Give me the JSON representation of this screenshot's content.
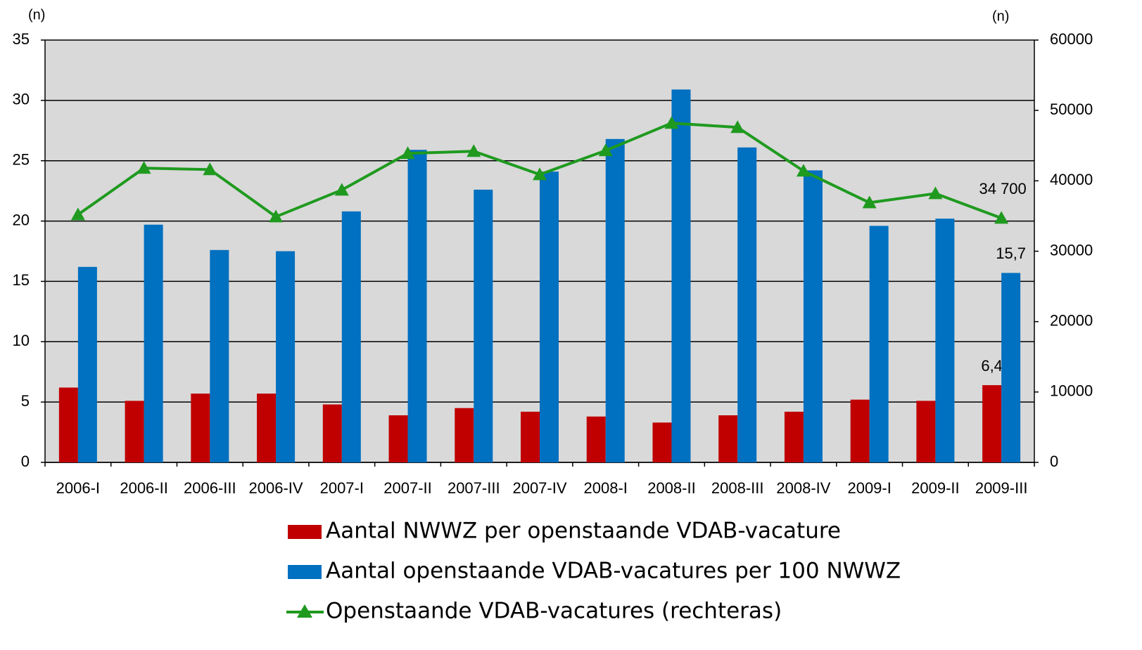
{
  "chart_data": {
    "type": "bar",
    "ylabel": "(n)",
    "y2label": "(n)",
    "categories": [
      "2006-I",
      "2006-II",
      "2006-III",
      "2006-IV",
      "2007-I",
      "2007-II",
      "2007-III",
      "2007-IV",
      "2008-I",
      "2008-II",
      "2008-III",
      "2008-IV",
      "2009-I",
      "2009-II",
      "2009-III"
    ],
    "series": [
      {
        "name": "Aantal NWWZ per openstaande VDAB-vacature",
        "type": "bar",
        "color": "#c00000",
        "values": [
          6.2,
          5.1,
          5.7,
          5.7,
          4.8,
          3.9,
          4.5,
          4.2,
          3.8,
          3.3,
          3.9,
          4.2,
          5.2,
          5.1,
          6.4
        ],
        "value_labels": [
          null,
          null,
          null,
          null,
          null,
          null,
          null,
          null,
          null,
          null,
          null,
          null,
          null,
          null,
          "6,4"
        ]
      },
      {
        "name": "Aantal openstaande VDAB-vacatures per 100 NWWZ",
        "type": "bar",
        "color": "#0070c0",
        "values": [
          16.2,
          19.7,
          17.6,
          17.5,
          20.8,
          25.9,
          22.6,
          24.1,
          26.8,
          30.9,
          26.1,
          24.2,
          19.6,
          20.2,
          15.7
        ],
        "value_labels": [
          null,
          null,
          null,
          null,
          null,
          null,
          null,
          null,
          null,
          null,
          null,
          null,
          null,
          null,
          "15,7"
        ]
      },
      {
        "name": "Openstaande VDAB-vacatures (rechteras)",
        "type": "line",
        "axis": "y2",
        "color": "#1f9a1f",
        "values": [
          35200,
          41800,
          41600,
          34900,
          38700,
          43900,
          44200,
          40900,
          44300,
          48200,
          47600,
          41400,
          36900,
          38200,
          34700
        ],
        "value_labels": [
          null,
          null,
          null,
          null,
          null,
          null,
          null,
          null,
          null,
          null,
          null,
          null,
          null,
          null,
          "34 700"
        ]
      }
    ],
    "ylim": [
      0,
      35
    ],
    "yticks": [
      0,
      5,
      10,
      15,
      20,
      25,
      30,
      35
    ],
    "y2lim": [
      0,
      60000
    ],
    "y2ticks": [
      0,
      10000,
      20000,
      30000,
      40000,
      50000,
      60000
    ],
    "grid": true,
    "plot_background": "#d9d9d9",
    "legend": "bottom"
  }
}
